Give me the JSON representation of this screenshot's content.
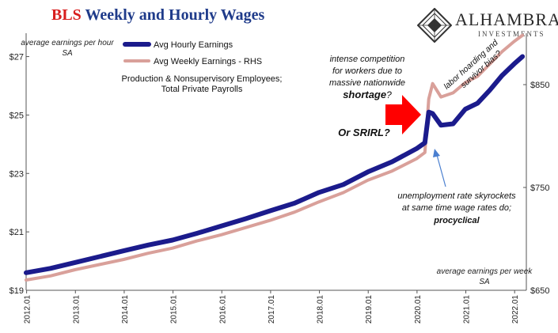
{
  "header": {
    "title_prefix": "BLS",
    "title_rest": "Weekly and Hourly Wages"
  },
  "logo": {
    "name": "ALHAMBRA",
    "sub": "INVESTMENTS"
  },
  "chart_data": {
    "type": "line",
    "left_axis_note": "average earnings per hour; SA",
    "right_axis_note": "average earnings per week; SA",
    "subtitle": "Production & Nonsupervisory Employees; Total Private Payrolls",
    "colors": {
      "hourly": "#1b1b8c",
      "weekly": "#d9a09a",
      "accent": "#ff0000",
      "title_blue": "#1f3b8a"
    },
    "y_left": {
      "ticks": [
        "$19",
        "$21",
        "$23",
        "$25",
        "$27"
      ],
      "lim": [
        19,
        27.8
      ]
    },
    "y_right": {
      "ticks": [
        "$650",
        "$750",
        "$850"
      ],
      "lim": [
        650,
        900
      ]
    },
    "x_ticks": [
      "2012.01",
      "2013.01",
      "2014.01",
      "2015.01",
      "2016.01",
      "2017.01",
      "2018.01",
      "2019.01",
      "2020.01",
      "2021.01",
      "2022.01"
    ],
    "series": [
      {
        "name": "Avg Hourly Earnings",
        "axis": "left",
        "points": [
          [
            2012.0,
            19.6
          ],
          [
            2012.5,
            19.75
          ],
          [
            2013.0,
            19.95
          ],
          [
            2013.5,
            20.15
          ],
          [
            2014.0,
            20.35
          ],
          [
            2014.5,
            20.55
          ],
          [
            2015.0,
            20.72
          ],
          [
            2015.5,
            20.95
          ],
          [
            2016.0,
            21.2
          ],
          [
            2016.5,
            21.45
          ],
          [
            2017.0,
            21.72
          ],
          [
            2017.5,
            21.98
          ],
          [
            2018.0,
            22.35
          ],
          [
            2018.5,
            22.62
          ],
          [
            2019.0,
            23.05
          ],
          [
            2019.5,
            23.4
          ],
          [
            2020.0,
            23.85
          ],
          [
            2020.17,
            24.05
          ],
          [
            2020.25,
            25.1
          ],
          [
            2020.33,
            25.05
          ],
          [
            2020.5,
            24.65
          ],
          [
            2020.75,
            24.7
          ],
          [
            2021.0,
            25.2
          ],
          [
            2021.25,
            25.4
          ],
          [
            2021.5,
            25.85
          ],
          [
            2021.75,
            26.35
          ],
          [
            2022.0,
            26.75
          ],
          [
            2022.17,
            27.0
          ]
        ]
      },
      {
        "name": "Avg Weekly Earnings - RHS",
        "axis": "right",
        "points": [
          [
            2012.0,
            660
          ],
          [
            2012.5,
            664
          ],
          [
            2013.0,
            670
          ],
          [
            2013.5,
            675
          ],
          [
            2014.0,
            680
          ],
          [
            2014.5,
            686
          ],
          [
            2015.0,
            691
          ],
          [
            2015.5,
            698
          ],
          [
            2016.0,
            704
          ],
          [
            2016.5,
            711
          ],
          [
            2017.0,
            718
          ],
          [
            2017.5,
            726
          ],
          [
            2018.0,
            736
          ],
          [
            2018.5,
            745
          ],
          [
            2019.0,
            757
          ],
          [
            2019.5,
            766
          ],
          [
            2020.0,
            778
          ],
          [
            2020.17,
            784
          ],
          [
            2020.25,
            836
          ],
          [
            2020.33,
            851
          ],
          [
            2020.5,
            838
          ],
          [
            2020.75,
            842
          ],
          [
            2021.0,
            852
          ],
          [
            2021.25,
            858
          ],
          [
            2021.5,
            870
          ],
          [
            2021.75,
            882
          ],
          [
            2022.0,
            892
          ],
          [
            2022.17,
            898
          ]
        ]
      }
    ],
    "annotations": [
      {
        "id": "competition",
        "lines": [
          "intense competition",
          "for workers due to",
          "massive nationwide"
        ],
        "emph": "shortage",
        "tail": "?"
      },
      {
        "id": "srirl",
        "text": "Or SRIRL?"
      },
      {
        "id": "hoarding",
        "lines": [
          "labor hoarding and",
          "survivor bias?"
        ]
      },
      {
        "id": "unemployment",
        "lines": [
          "unemployment rate skyrockets",
          "at same time wage rates do;"
        ],
        "emph": "procyclical"
      }
    ]
  }
}
